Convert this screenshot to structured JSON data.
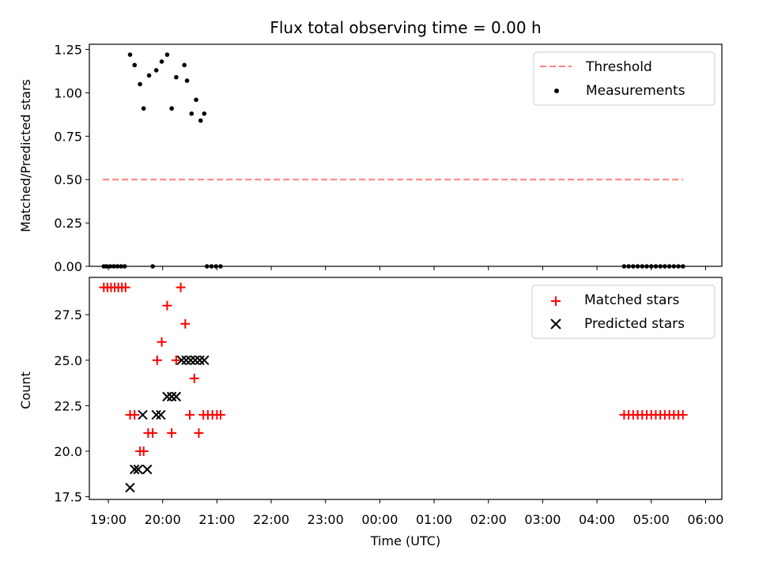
{
  "title": "Flux total observing time = 0.00 h",
  "xlabel": "Time (UTC)",
  "x_tick_labels": [
    "19:00",
    "20:00",
    "21:00",
    "22:00",
    "23:00",
    "00:00",
    "01:00",
    "02:00",
    "03:00",
    "04:00",
    "05:00",
    "06:00"
  ],
  "colors": {
    "threshold": "#ff7f7f",
    "matched": "#ff0000",
    "predicted": "#000000",
    "measurement": "#000000"
  },
  "chart_data": [
    {
      "type": "scatter",
      "ylabel": "Matched/Predicted stars",
      "ylim": [
        0,
        1.25
      ],
      "yticks": [
        "0.00",
        "0.25",
        "0.50",
        "0.75",
        "1.00",
        "1.25"
      ],
      "legend_position": "top-right",
      "grid": false,
      "threshold": {
        "name": "Threshold",
        "y": 0.5,
        "x_start": "18:54",
        "x_end": "05:35",
        "style": "dashed"
      },
      "series": [
        {
          "name": "Measurements",
          "points": [
            [
              "18:55",
              0
            ],
            [
              "18:58",
              0
            ],
            [
              "19:02",
              0
            ],
            [
              "19:06",
              0
            ],
            [
              "19:10",
              0
            ],
            [
              "19:14",
              0
            ],
            [
              "19:18",
              0
            ],
            [
              "19:24",
              1.22
            ],
            [
              "19:29",
              1.16
            ],
            [
              "19:35",
              1.05
            ],
            [
              "19:39",
              0.91
            ],
            [
              "19:45",
              1.1
            ],
            [
              "19:49",
              0
            ],
            [
              "19:53",
              1.13
            ],
            [
              "19:59",
              1.18
            ],
            [
              "20:05",
              1.22
            ],
            [
              "20:10",
              0.91
            ],
            [
              "20:15",
              1.09
            ],
            [
              "20:24",
              1.16
            ],
            [
              "20:27",
              1.07
            ],
            [
              "20:32",
              0.88
            ],
            [
              "20:37",
              0.96
            ],
            [
              "20:42",
              0.84
            ],
            [
              "20:46",
              0.88
            ],
            [
              "20:49",
              0
            ],
            [
              "20:54",
              0
            ],
            [
              "20:59",
              0
            ],
            [
              "21:04",
              0
            ],
            [
              "04:30",
              0
            ],
            [
              "04:35",
              0
            ],
            [
              "04:40",
              0
            ],
            [
              "04:45",
              0
            ],
            [
              "04:50",
              0
            ],
            [
              "04:55",
              0
            ],
            [
              "05:00",
              0
            ],
            [
              "05:05",
              0
            ],
            [
              "05:10",
              0
            ],
            [
              "05:15",
              0
            ],
            [
              "05:20",
              0
            ],
            [
              "05:25",
              0
            ],
            [
              "05:30",
              0
            ],
            [
              "05:35",
              0
            ]
          ]
        }
      ]
    },
    {
      "type": "scatter",
      "ylabel": "Count",
      "ylim": [
        17.5,
        29
      ],
      "yticks": [
        "17.5",
        "20.0",
        "22.5",
        "25.0",
        "27.5"
      ],
      "legend_position": "top-right",
      "grid": false,
      "series": [
        {
          "name": "Matched stars",
          "marker": "+",
          "points": [
            [
              "18:55",
              29
            ],
            [
              "18:59",
              29
            ],
            [
              "19:03",
              29
            ],
            [
              "19:07",
              29
            ],
            [
              "19:11",
              29
            ],
            [
              "19:15",
              29
            ],
            [
              "19:19",
              29
            ],
            [
              "19:24",
              22
            ],
            [
              "19:29",
              22
            ],
            [
              "19:35",
              20
            ],
            [
              "19:39",
              20
            ],
            [
              "19:44",
              21
            ],
            [
              "19:49",
              21
            ],
            [
              "19:54",
              25
            ],
            [
              "19:59",
              26
            ],
            [
              "20:05",
              28
            ],
            [
              "20:10",
              21
            ],
            [
              "20:15",
              25
            ],
            [
              "20:20",
              29
            ],
            [
              "20:25",
              27
            ],
            [
              "20:30",
              22
            ],
            [
              "20:35",
              24
            ],
            [
              "20:40",
              21
            ],
            [
              "20:45",
              22
            ],
            [
              "20:50",
              22
            ],
            [
              "20:55",
              22
            ],
            [
              "21:00",
              22
            ],
            [
              "21:04",
              22
            ],
            [
              "04:30",
              22
            ],
            [
              "04:35",
              22
            ],
            [
              "04:40",
              22
            ],
            [
              "04:45",
              22
            ],
            [
              "04:50",
              22
            ],
            [
              "04:55",
              22
            ],
            [
              "05:00",
              22
            ],
            [
              "05:05",
              22
            ],
            [
              "05:10",
              22
            ],
            [
              "05:15",
              22
            ],
            [
              "05:20",
              22
            ],
            [
              "05:25",
              22
            ],
            [
              "05:30",
              22
            ],
            [
              "05:35",
              22
            ]
          ]
        },
        {
          "name": "Predicted stars",
          "marker": "x",
          "points": [
            [
              "19:24",
              18
            ],
            [
              "19:29",
              19
            ],
            [
              "19:33",
              19
            ],
            [
              "19:38",
              22
            ],
            [
              "19:43",
              19
            ],
            [
              "19:53",
              22
            ],
            [
              "19:58",
              22
            ],
            [
              "20:05",
              23
            ],
            [
              "20:10",
              23
            ],
            [
              "20:15",
              23
            ],
            [
              "20:21",
              25
            ],
            [
              "20:26",
              25
            ],
            [
              "20:31",
              25
            ],
            [
              "20:36",
              25
            ],
            [
              "20:41",
              25
            ],
            [
              "20:46",
              25
            ]
          ]
        }
      ]
    }
  ]
}
